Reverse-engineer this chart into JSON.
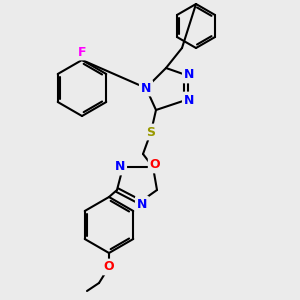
{
  "background_color": "#ebebeb",
  "bond_color": "#000000",
  "bond_lw": 1.5,
  "atom_colors": {
    "N": "#0000FF",
    "O": "#FF0000",
    "F": "#FF00FF",
    "S": "#999900",
    "C": "#000000"
  },
  "font_size": 9
}
